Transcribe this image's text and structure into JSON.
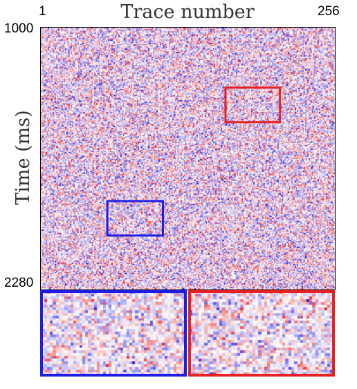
{
  "chart_data": {
    "type": "heatmap",
    "xlabel": "Trace number",
    "ylabel": "Time (ms)",
    "x_ticks": [
      "1",
      "256"
    ],
    "y_ticks": [
      "1000",
      "2280"
    ],
    "xlim": [
      1,
      256
    ],
    "ylim": [
      1000,
      2280
    ],
    "colormap": {
      "negative": "#2020e8",
      "zero": "#ffffff",
      "positive": "#e82020"
    },
    "regions": [
      {
        "color": "#e82020",
        "trace_range": [
          161,
          208
        ],
        "time_range": [
          1296,
          1464
        ]
      },
      {
        "color": "#1d1de8",
        "trace_range": [
          59,
          107
        ],
        "time_range": [
          1849,
          2017
        ]
      }
    ],
    "insets": [
      {
        "color": "#1d1de8",
        "region": 1
      },
      {
        "color": "#e82020",
        "region": 0
      }
    ]
  }
}
